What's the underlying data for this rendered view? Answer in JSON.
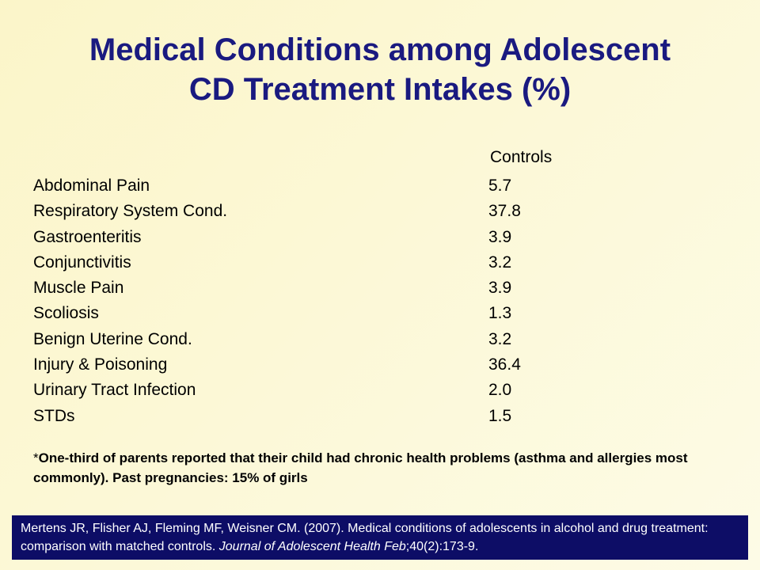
{
  "title": {
    "line1": "Medical Conditions among Adolescent",
    "line2": "CD Treatment Intakes (%)"
  },
  "table": {
    "column_header": "Controls",
    "rows": [
      {
        "label": "Abdominal Pain",
        "value": "5.7"
      },
      {
        "label": "Respiratory System Cond.",
        "value": "37.8"
      },
      {
        "label": "Gastroenteritis",
        "value": "3.9"
      },
      {
        "label": "Conjunctivitis",
        "value": "3.2"
      },
      {
        "label": "Muscle Pain",
        "value": "3.9"
      },
      {
        "label": "Scoliosis",
        "value": "1.3"
      },
      {
        "label": "Benign Uterine Cond.",
        "value": "3.2"
      },
      {
        "label": "Injury & Poisoning",
        "value": "36.4"
      },
      {
        "label": "Urinary Tract Infection",
        "value": "2.0"
      },
      {
        "label": "STDs",
        "value": "1.5"
      }
    ]
  },
  "footnote": {
    "asterisk": "*",
    "text": "One-third of parents reported that their child had chronic health problems (asthma and allergies most commonly).  Past pregnancies:  15% of girls"
  },
  "citation": {
    "text_before": "Mertens JR, Flisher AJ, Fleming MF, Weisner CM. (2007). Medical conditions of adolescents in alcohol and drug treatment: comparison with matched controls. ",
    "journal": "Journal of Adolescent Health Feb",
    "text_after": ";40(2):173-9."
  },
  "colors": {
    "title": "#1a1a80",
    "citation_background": "#0d0d66",
    "slide_background": "#fcf8d6"
  }
}
